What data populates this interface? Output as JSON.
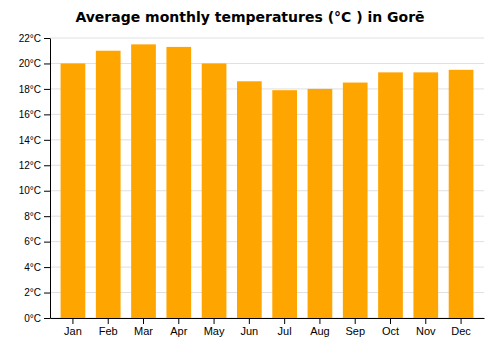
{
  "chart_data": {
    "type": "bar",
    "title": "Average monthly temperatures (°C ) in Gorē",
    "categories": [
      "Jan",
      "Feb",
      "Mar",
      "Apr",
      "May",
      "Jun",
      "Jul",
      "Aug",
      "Sep",
      "Oct",
      "Nov",
      "Dec"
    ],
    "values": [
      20.0,
      21.0,
      21.5,
      21.3,
      20.0,
      18.6,
      17.9,
      18.0,
      18.5,
      19.3,
      19.3,
      19.5
    ],
    "color": "#FFA500",
    "ylim": [
      0,
      22
    ],
    "yticks": [
      {
        "value": 0,
        "label": "0°C"
      },
      {
        "value": 2,
        "label": "2°C"
      },
      {
        "value": 4,
        "label": "4°C"
      },
      {
        "value": 6,
        "label": "6°C"
      },
      {
        "value": 8,
        "label": "8°C"
      },
      {
        "value": 10,
        "label": "10°C"
      },
      {
        "value": 12,
        "label": "12°C"
      },
      {
        "value": 14,
        "label": "14°C"
      },
      {
        "value": 16,
        "label": "16°C"
      },
      {
        "value": 18,
        "label": "18°C"
      },
      {
        "value": 20,
        "label": "20°C"
      },
      {
        "value": 22,
        "label": "22°C"
      }
    ],
    "grid": true
  }
}
